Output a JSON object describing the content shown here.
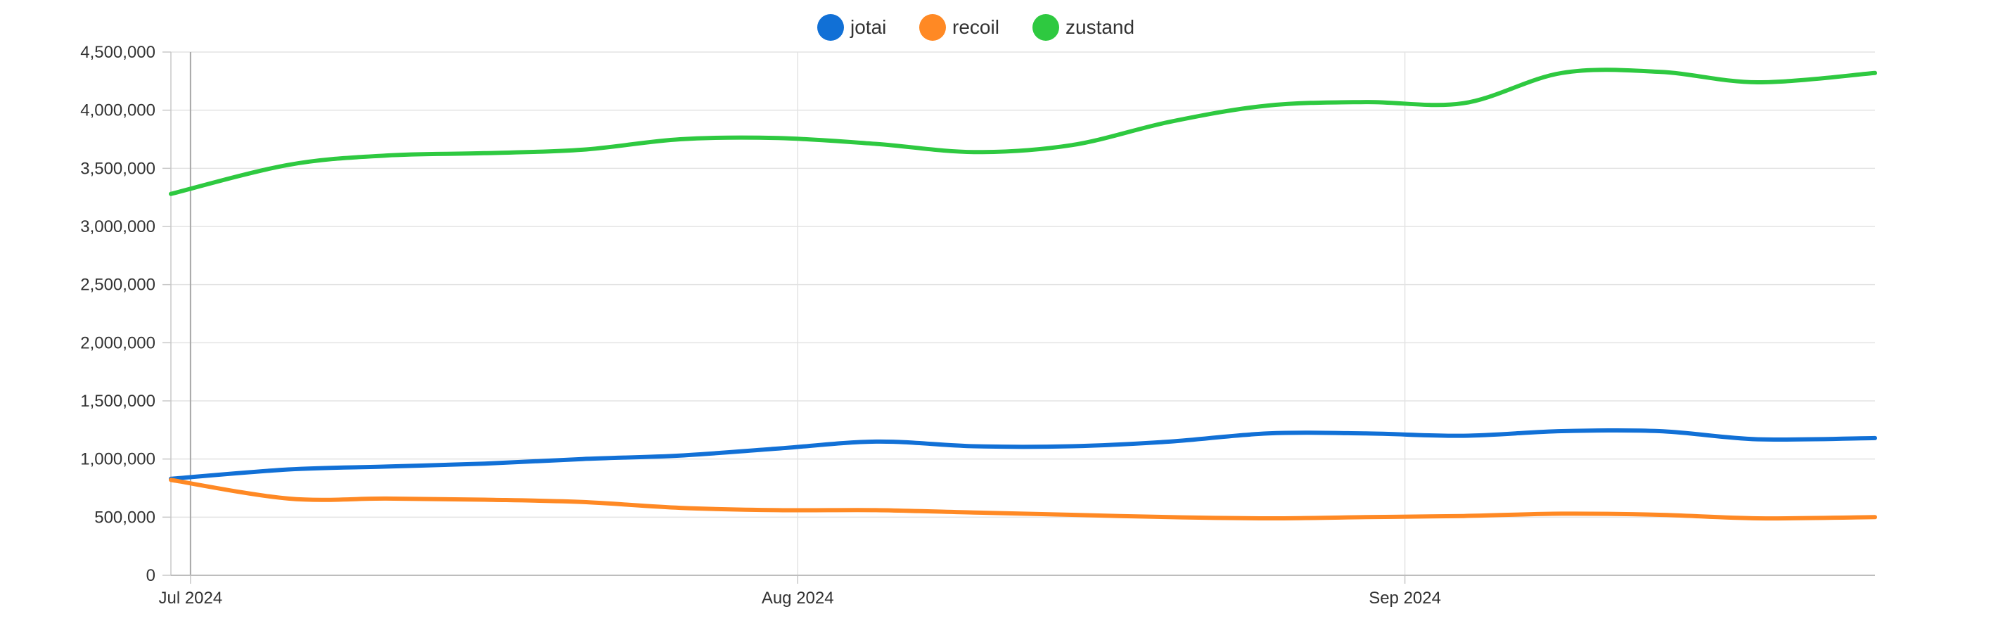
{
  "chart_data": {
    "type": "line",
    "title": "",
    "xlabel": "",
    "ylabel": "",
    "ylim": [
      0,
      4500000
    ],
    "y_ticks": [
      0,
      500000,
      1000000,
      1500000,
      2000000,
      2500000,
      3000000,
      3500000,
      4000000,
      4500000
    ],
    "y_tick_labels": [
      "0",
      "500,000",
      "1,000,000",
      "1,500,000",
      "2,000,000",
      "2,500,000",
      "3,000,000",
      "3,500,000",
      "4,000,000",
      "4,500,000"
    ],
    "x_domain_days": [
      -1,
      86
    ],
    "x_ticks": [
      {
        "label": "Jul 2024",
        "day": 0
      },
      {
        "label": "Aug 2024",
        "day": 31
      },
      {
        "label": "Sep 2024",
        "day": 62
      }
    ],
    "x_days": [
      -1,
      5,
      10,
      15,
      20,
      25,
      30,
      35,
      40,
      45,
      50,
      55,
      60,
      65,
      70,
      75,
      80,
      86
    ],
    "legend_position": "top-center",
    "grid": true,
    "series": [
      {
        "name": "jotai",
        "color": "#1170d6",
        "values": [
          830000,
          910000,
          935000,
          960000,
          1000000,
          1030000,
          1090000,
          1150000,
          1110000,
          1110000,
          1150000,
          1220000,
          1220000,
          1200000,
          1240000,
          1240000,
          1170000,
          1180000
        ]
      },
      {
        "name": "recoil",
        "color": "#ff8924",
        "values": [
          820000,
          660000,
          660000,
          650000,
          630000,
          580000,
          560000,
          560000,
          540000,
          520000,
          500000,
          490000,
          500000,
          510000,
          530000,
          520000,
          490000,
          500000
        ]
      },
      {
        "name": "zustand",
        "color": "#2ec940",
        "values": [
          3280000,
          3530000,
          3610000,
          3630000,
          3660000,
          3750000,
          3760000,
          3710000,
          3640000,
          3700000,
          3900000,
          4040000,
          4070000,
          4060000,
          4320000,
          4330000,
          4240000,
          4320000
        ]
      }
    ]
  }
}
